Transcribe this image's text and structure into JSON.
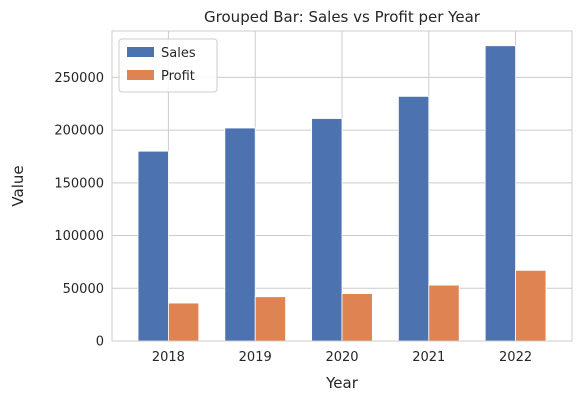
{
  "chart_data": {
    "type": "bar",
    "title": "Grouped Bar: Sales vs Profit per Year",
    "xlabel": "Year",
    "ylabel": "Value",
    "categories": [
      "2018",
      "2019",
      "2020",
      "2021",
      "2022"
    ],
    "series": [
      {
        "name": "Sales",
        "color": "#4c72b0",
        "values": [
          180000,
          202000,
          211000,
          232000,
          280000
        ]
      },
      {
        "name": "Profit",
        "color": "#dd8452",
        "values": [
          36000,
          42000,
          45000,
          53000,
          67000
        ]
      }
    ],
    "ylim": [
      0,
      294000
    ],
    "yticks": [
      0,
      50000,
      100000,
      150000,
      200000,
      250000
    ],
    "ytick_labels": [
      "0",
      "50000",
      "100000",
      "150000",
      "200000",
      "250000"
    ],
    "grid": true,
    "legend_position": "top-left"
  }
}
